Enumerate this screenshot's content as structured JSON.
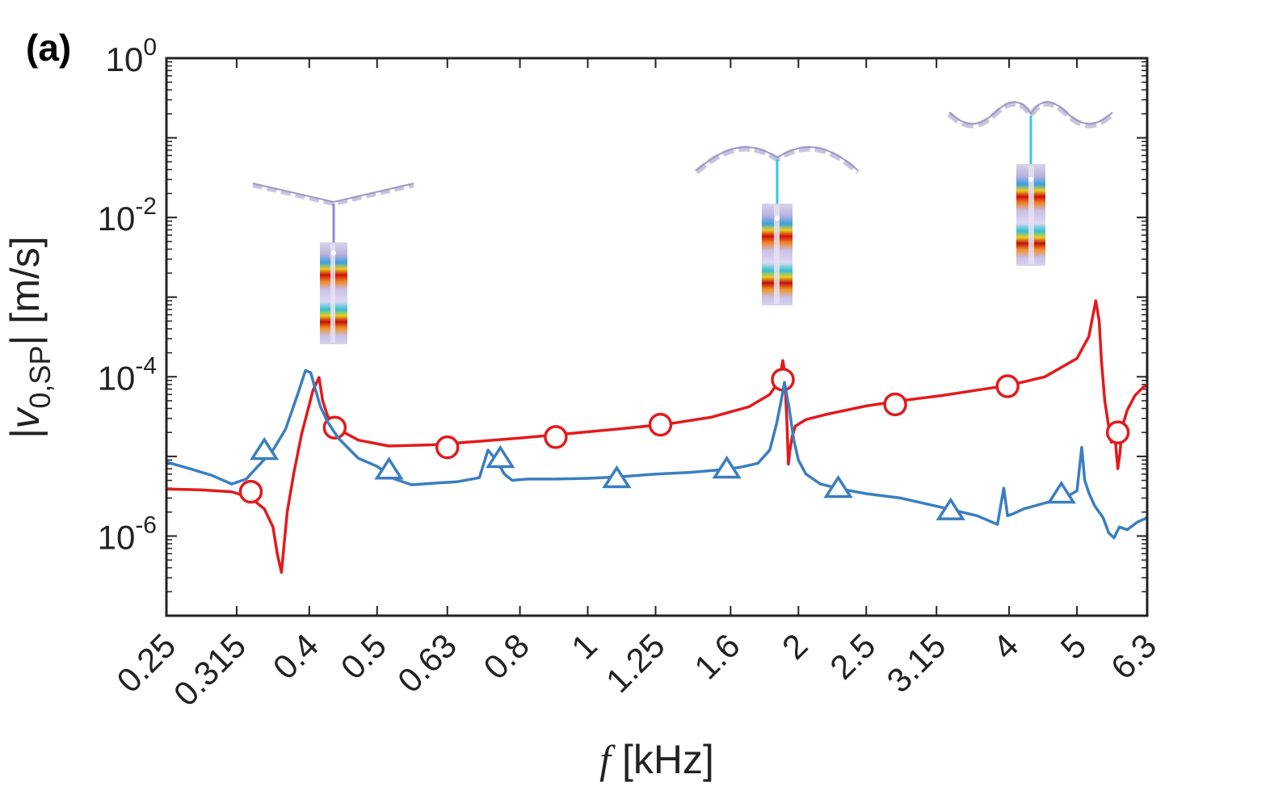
{
  "chart_data": {
    "type": "line",
    "panel_label": "(a)",
    "xlabel": {
      "symbol": "f",
      "unit": " [kHz]"
    },
    "ylabel": {
      "pre": "|v",
      "sub": "0,SP",
      "post": "| [m/s]"
    },
    "x_scale": "log",
    "y_scale": "log",
    "xlim": [
      0.25,
      6.3
    ],
    "ylim": [
      1e-07,
      1
    ],
    "xticks": [
      {
        "value": 0.25,
        "label": "0.25"
      },
      {
        "value": 0.315,
        "label": "0.315"
      },
      {
        "value": 0.4,
        "label": "0.4"
      },
      {
        "value": 0.5,
        "label": "0.5"
      },
      {
        "value": 0.63,
        "label": "0.63"
      },
      {
        "value": 0.8,
        "label": "0.8"
      },
      {
        "value": 1,
        "label": "1"
      },
      {
        "value": 1.25,
        "label": "1.25"
      },
      {
        "value": 1.6,
        "label": "1.6"
      },
      {
        "value": 2,
        "label": "2"
      },
      {
        "value": 2.5,
        "label": "2.5"
      },
      {
        "value": 3.15,
        "label": "3.15"
      },
      {
        "value": 4,
        "label": "4"
      },
      {
        "value": 5,
        "label": "5"
      },
      {
        "value": 6.3,
        "label": "6.3"
      }
    ],
    "yticks": [
      {
        "value": 1e-06,
        "base": "10",
        "exp": "-6"
      },
      {
        "value": 0.0001,
        "base": "10",
        "exp": "-4"
      },
      {
        "value": 0.01,
        "base": "10",
        "exp": "-2"
      },
      {
        "value": 1,
        "base": "10",
        "exp": "0"
      }
    ],
    "series": [
      {
        "name": "red-circles",
        "color": "#e31a1c",
        "marker": "circle",
        "x": [
          0.25,
          0.28,
          0.31,
          0.33,
          0.345,
          0.355,
          0.36,
          0.365,
          0.372,
          0.38,
          0.39,
          0.405,
          0.413,
          0.418,
          0.425,
          0.44,
          0.47,
          0.52,
          0.6,
          0.7,
          0.8,
          0.95,
          1.1,
          1.3,
          1.5,
          1.7,
          1.82,
          1.88,
          1.9,
          1.91,
          1.925,
          1.935,
          1.945,
          1.96,
          1.98,
          2.05,
          2.2,
          2.5,
          2.8,
          3.2,
          3.6,
          4.0,
          4.5,
          5.0,
          5.2,
          5.32,
          5.38,
          5.42,
          5.48,
          5.55,
          5.6,
          5.65,
          5.7,
          5.72,
          5.76,
          5.8,
          5.9,
          6.05,
          6.2,
          6.3
        ],
        "y": [
          3.9e-06,
          3.8e-06,
          3.6e-06,
          3e-06,
          2.2e-06,
          1.3e-06,
          6e-07,
          3.5e-07,
          2e-06,
          6e-06,
          1.9e-05,
          6.8e-05,
          9.8e-05,
          5e-05,
          3.2e-05,
          2.2e-05,
          1.6e-05,
          1.35e-05,
          1.4e-05,
          1.55e-05,
          1.7e-05,
          1.95e-05,
          2.2e-05,
          2.55e-05,
          3.1e-05,
          4.2e-05,
          6e-05,
          9e-05,
          0.00016,
          0.00012,
          3e-05,
          8e-06,
          1.2e-05,
          1.8e-05,
          2.4e-05,
          2.9e-05,
          3.4e-05,
          4.3e-05,
          5e-05,
          5.8e-05,
          6.8e-05,
          7.8e-05,
          0.0001,
          0.00017,
          0.00032,
          0.0009,
          0.0005,
          0.00016,
          5e-05,
          2.4e-05,
          1.5e-05,
          2.5e-05,
          1e-05,
          7e-06,
          1.1e-05,
          2.3e-05,
          3.8e-05,
          5.8e-05,
          7.2e-05,
          8e-05
        ],
        "markers_x": [
          0.33,
          0.435,
          0.63,
          0.9,
          1.27,
          1.9,
          2.75,
          3.98,
          5.72
        ],
        "markers_y": [
          3.6e-06,
          2.3e-05,
          1.3e-05,
          1.75e-05,
          2.5e-05,
          9.2e-05,
          4.5e-05,
          7.6e-05,
          2e-05
        ]
      },
      {
        "name": "blue-triangles",
        "color": "#3a7ebf",
        "marker": "triangle",
        "x": [
          0.25,
          0.27,
          0.29,
          0.31,
          0.325,
          0.34,
          0.355,
          0.37,
          0.385,
          0.395,
          0.402,
          0.408,
          0.415,
          0.425,
          0.44,
          0.47,
          0.5,
          0.53,
          0.56,
          0.6,
          0.65,
          0.7,
          0.72,
          0.74,
          0.76,
          0.78,
          0.82,
          0.9,
          1.0,
          1.1,
          1.25,
          1.4,
          1.55,
          1.65,
          1.75,
          1.82,
          1.86,
          1.89,
          1.91,
          1.94,
          1.97,
          2.0,
          2.05,
          2.15,
          2.3,
          2.5,
          2.8,
          3.2,
          3.6,
          3.85,
          3.93,
          3.98,
          4.05,
          4.2,
          4.5,
          4.8,
          5.0,
          5.08,
          5.13,
          5.2,
          5.3,
          5.45,
          5.55,
          5.65,
          5.75,
          5.9,
          6.1,
          6.3
        ],
        "y": [
          8.5e-06,
          7e-06,
          5.8e-06,
          4.5e-06,
          5.2e-06,
          8e-06,
          1.2e-05,
          2.2e-05,
          6e-05,
          0.00012,
          0.000112,
          7e-05,
          4.2e-05,
          2.7e-05,
          1.7e-05,
          9.5e-06,
          7.5e-06,
          5.2e-06,
          4.4e-06,
          4.6e-06,
          4.8e-06,
          5.4e-06,
          1.2e-05,
          9e-06,
          6e-06,
          5e-06,
          5.2e-06,
          5.2e-06,
          5.3e-06,
          5.5e-06,
          6e-06,
          6.3e-06,
          6.8e-06,
          7.3e-06,
          8.2e-06,
          1.2e-05,
          2.5e-05,
          5e-05,
          8.5e-05,
          4e-05,
          1.6e-05,
          9e-06,
          6e-06,
          4.5e-06,
          3.9e-06,
          3.4e-06,
          3e-06,
          2.3e-06,
          1.8e-06,
          1.4e-06,
          4e-06,
          1.8e-06,
          1.9e-06,
          2.2e-06,
          2.6e-06,
          3e-06,
          3.7e-06,
          1.3e-05,
          5e-06,
          3.5e-06,
          2.4e-06,
          1.7e-06,
          1.1e-06,
          9.5e-07,
          1.3e-06,
          1.2e-06,
          1.5e-06,
          1.7e-06
        ],
        "markers_x": [
          0.345,
          0.52,
          0.75,
          1.1,
          1.58,
          2.28,
          3.3,
          4.75
        ],
        "markers_y": [
          1.2e-05,
          6.8e-06,
          9.5e-06,
          5.3e-06,
          7e-06,
          4e-06,
          2.1e-06,
          3.4e-06
        ]
      }
    ],
    "insets": [
      {
        "name": "mode-shape-inset-1",
        "shape": "v"
      },
      {
        "name": "mode-shape-inset-2",
        "shape": "arch"
      },
      {
        "name": "mode-shape-inset-3",
        "shape": "wave"
      }
    ]
  }
}
